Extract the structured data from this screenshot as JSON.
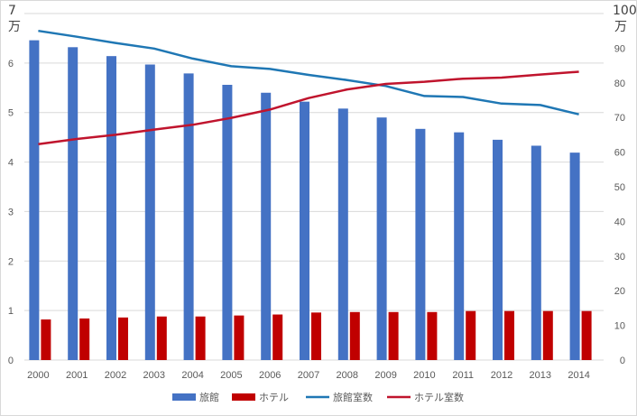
{
  "chart_data": {
    "type": "bar",
    "title": "",
    "categories": [
      "2000",
      "2001",
      "2002",
      "2003",
      "2004",
      "2005",
      "2006",
      "2007",
      "2008",
      "2009",
      "2010",
      "2011",
      "2012",
      "2013",
      "2014"
    ],
    "left_axis": {
      "ylim": [
        0,
        7
      ],
      "ticks": [
        "0",
        "1",
        "2",
        "3",
        "4",
        "5",
        "6",
        "7"
      ],
      "unit_label": "万"
    },
    "right_axis": {
      "ylim": [
        0,
        100
      ],
      "ticks": [
        "0",
        "10",
        "20",
        "30",
        "40",
        "50",
        "60",
        "70",
        "80",
        "90",
        "100"
      ],
      "unit_label": "万"
    },
    "series": [
      {
        "name": "旅館",
        "kind": "bar",
        "axis": "left",
        "color": "#4472c4",
        "values": [
          6.46,
          6.32,
          6.14,
          5.97,
          5.79,
          5.56,
          5.4,
          5.22,
          5.08,
          4.9,
          4.67,
          4.6,
          4.45,
          4.33,
          4.19
        ]
      },
      {
        "name": "ホテル",
        "kind": "bar",
        "axis": "left",
        "color": "#c00000",
        "values": [
          0.82,
          0.84,
          0.86,
          0.88,
          0.88,
          0.9,
          0.92,
          0.96,
          0.97,
          0.97,
          0.97,
          0.99,
          0.99,
          0.99,
          0.99
        ]
      },
      {
        "name": "旅館室数",
        "kind": "line",
        "axis": "right",
        "color": "#1f77b4",
        "values": [
          95.0,
          93.3,
          91.5,
          89.9,
          87.0,
          84.8,
          84.0,
          82.3,
          80.8,
          79.1,
          76.2,
          75.9,
          74.0,
          73.6,
          70.9
        ]
      },
      {
        "name": "ホテル室数",
        "kind": "line",
        "axis": "right",
        "color": "#c0142d",
        "values": [
          62.3,
          63.8,
          65.0,
          66.5,
          67.9,
          69.9,
          72.3,
          75.6,
          78.1,
          79.7,
          80.3,
          81.2,
          81.5,
          82.4,
          83.2
        ]
      }
    ],
    "legend_position": "bottom",
    "grid": true
  }
}
